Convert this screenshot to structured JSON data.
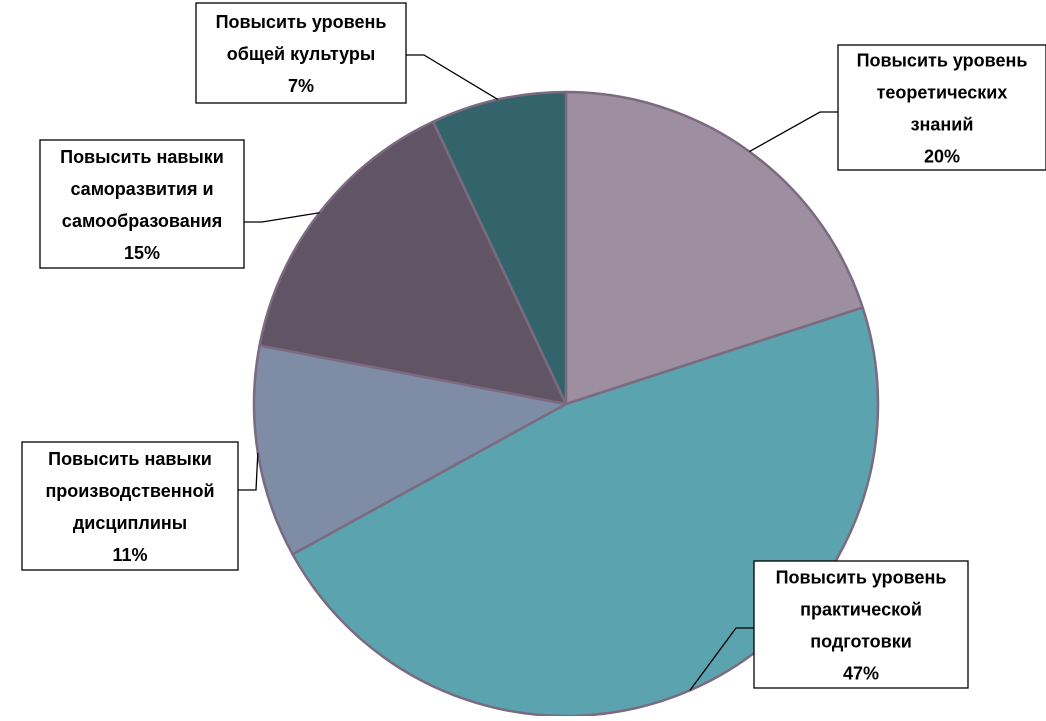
{
  "chart_data": {
    "type": "pie",
    "title": "",
    "slices": [
      {
        "label": "Повысить уровень теоретических знаний",
        "lines": [
          "Повысить уровень",
          "теоретических",
          "знаний"
        ],
        "value": 20,
        "value_label": "20%",
        "color": "#9e8fa0"
      },
      {
        "label": "Повысить уровень практической подготовки",
        "lines": [
          "Повысить уровень",
          "практической",
          "подготовки"
        ],
        "value": 47,
        "value_label": "47%",
        "color": "#5ba3af"
      },
      {
        "label": "Повысить навыки производственной дисциплины",
        "lines": [
          "Повысить навыки",
          "производственной",
          "дисциплины"
        ],
        "value": 11,
        "value_label": "11%",
        "color": "#7e8ca6"
      },
      {
        "label": "Повысить навыки саморазвития и самообразования",
        "lines": [
          "Повысить навыки",
          "саморазвития и",
          "самообразования"
        ],
        "value": 15,
        "value_label": "15%",
        "color": "#615464"
      },
      {
        "label": "Повысить уровень общей культуры",
        "lines": [
          "Повысить уровень",
          "общей культуры"
        ],
        "value": 7,
        "value_label": "7%",
        "color": "#34646b"
      }
    ],
    "start_angle": "12 o'clock",
    "direction": "clockwise",
    "slice_border_color": "#7b6a80",
    "legend": "none",
    "label_style": "callout boxes with leader lines"
  }
}
